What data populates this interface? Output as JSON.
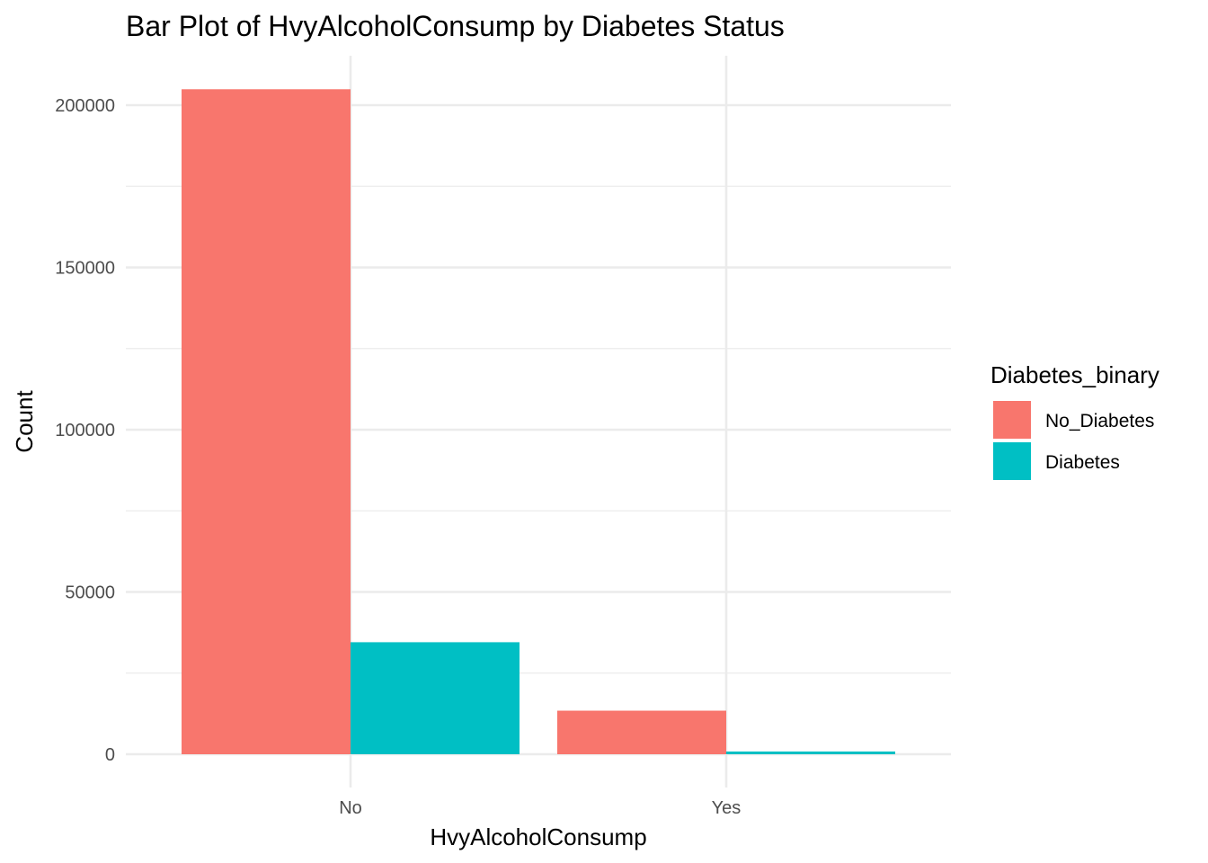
{
  "chart_data": {
    "type": "bar",
    "title": "Bar Plot of HvyAlcoholConsump by Diabetes Status",
    "xlabel": "HvyAlcoholConsump",
    "ylabel": "Count",
    "categories": [
      "No",
      "Yes"
    ],
    "series": [
      {
        "name": "No_Diabetes",
        "color": "#F8766D",
        "values": [
          204910,
          13424
        ]
      },
      {
        "name": "Diabetes",
        "color": "#00BFC4",
        "values": [
          34514,
          832
        ]
      }
    ],
    "ylim": [
      0,
      215000
    ],
    "yticks": [
      0,
      50000,
      100000,
      150000,
      200000
    ],
    "ytick_labels": [
      "0",
      "50000",
      "100000",
      "150000",
      "200000"
    ],
    "grid": true,
    "legend": {
      "title": "Diabetes_binary",
      "position": "right"
    }
  }
}
